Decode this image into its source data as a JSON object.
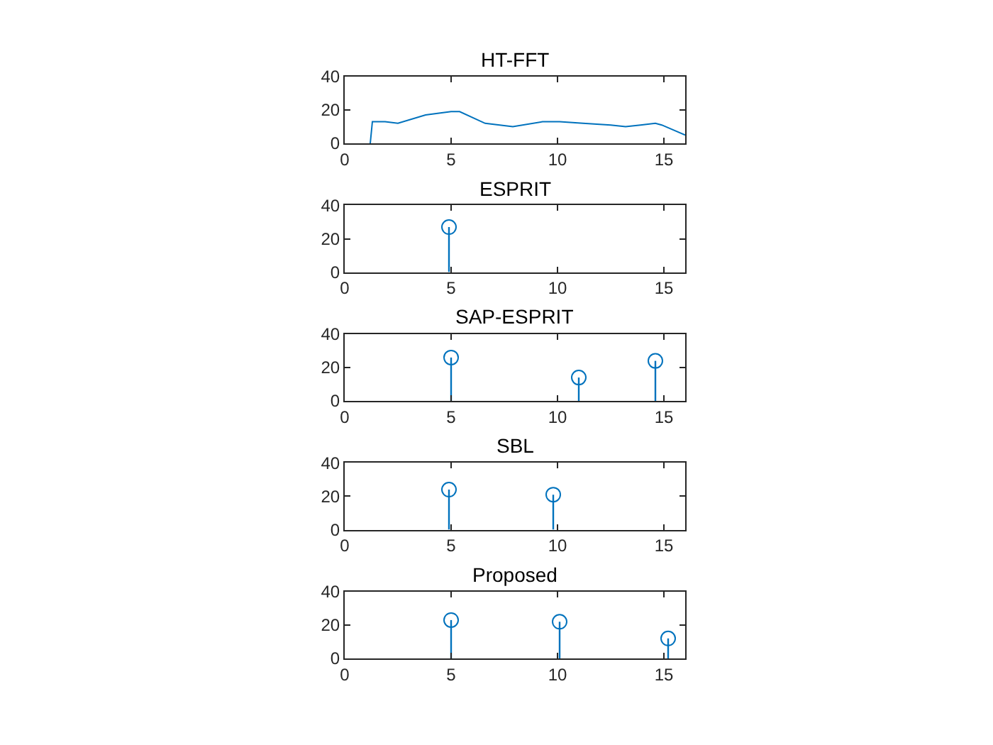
{
  "chart_data": [
    {
      "type": "line",
      "title": "HT-FFT",
      "x": [
        1.2,
        1.3,
        1.9,
        2.5,
        3.8,
        5.0,
        5.2,
        5.4,
        6.6,
        7.9,
        9.3,
        10.1,
        11.2,
        12.5,
        13.2,
        13.9,
        14.6,
        14.9,
        16
      ],
      "series": [
        {
          "color": "#0072bd",
          "values": [
            0,
            13,
            13,
            12,
            17,
            19,
            19,
            19,
            12,
            10,
            13,
            13,
            12,
            11,
            10,
            11,
            12,
            11,
            5
          ]
        }
      ],
      "xlim": [
        0,
        16
      ],
      "ylim": [
        0,
        40
      ],
      "xticks": [
        0,
        5,
        10,
        15
      ],
      "yticks": [
        0,
        20,
        40
      ]
    },
    {
      "type": "lollipop",
      "title": "ESPRIT",
      "x": [
        4.9
      ],
      "series": [
        {
          "color": "#0072bd",
          "values": [
            27
          ]
        }
      ],
      "marker": "circle",
      "xlim": [
        0,
        16
      ],
      "ylim": [
        0,
        40
      ],
      "xticks": [
        0,
        5,
        10,
        15
      ],
      "yticks": [
        0,
        20,
        40
      ]
    },
    {
      "type": "lollipop",
      "title": "SAP-ESPRIT",
      "x": [
        5.0,
        11.0,
        14.6
      ],
      "series": [
        {
          "color": "#0072bd",
          "values": [
            26,
            14,
            24
          ]
        }
      ],
      "marker": "circle",
      "xlim": [
        0,
        16
      ],
      "ylim": [
        0,
        40
      ],
      "xticks": [
        0,
        5,
        10,
        15
      ],
      "yticks": [
        0,
        20,
        40
      ]
    },
    {
      "type": "lollipop",
      "title": "SBL",
      "x": [
        4.9,
        9.8
      ],
      "series": [
        {
          "color": "#0072bd",
          "values": [
            24,
            21
          ]
        }
      ],
      "marker": "circle",
      "xlim": [
        0,
        16
      ],
      "ylim": [
        0,
        40
      ],
      "xticks": [
        0,
        5,
        10,
        15
      ],
      "yticks": [
        0,
        20,
        40
      ]
    },
    {
      "type": "lollipop",
      "title": "Proposed",
      "x": [
        5.0,
        10.1,
        15.2
      ],
      "series": [
        {
          "color": "#0072bd",
          "values": [
            23,
            22,
            12
          ]
        }
      ],
      "marker": "circle",
      "xlim": [
        0,
        16
      ],
      "ylim": [
        0,
        40
      ],
      "xticks": [
        0,
        5,
        10,
        15
      ],
      "yticks": [
        0,
        20,
        40
      ]
    }
  ]
}
